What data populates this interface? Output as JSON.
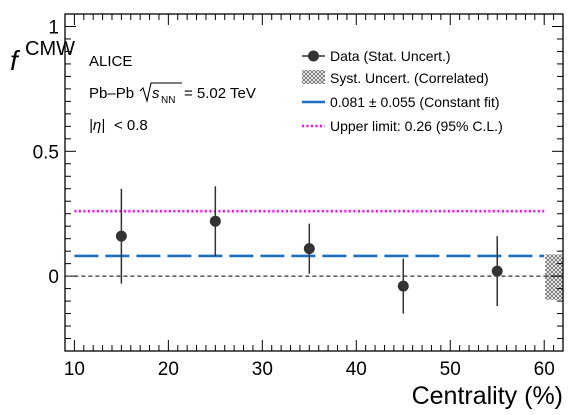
{
  "chart_data": {
    "type": "scatter",
    "ylabel_main": "f",
    "ylabel_sub": "CMW",
    "xlabel": "Centrality (%)",
    "xlim": [
      9,
      62
    ],
    "ylim": [
      -0.3,
      1.05
    ],
    "x_ticks": [
      10,
      20,
      30,
      40,
      50,
      60
    ],
    "y_ticks": [
      {
        "value": 0,
        "label": "0"
      },
      {
        "value": 0.5,
        "label": "0.5"
      },
      {
        "value": 1,
        "label": "1"
      }
    ],
    "annotations": {
      "experiment": "ALICE",
      "system_prefix": "Pb–Pb",
      "sqrt_var": "s",
      "sqrt_sub": "NN",
      "energy": "= 5.02 TeV",
      "eta_symbol": "|η|",
      "eta_cut": "< 0.8"
    },
    "legend": {
      "placement": "top-right",
      "data_label": "Data (Stat. Uncert.)",
      "syst_label": "Syst. Uncert. (Correlated)",
      "fit_label": "0.081 ± 0.055 (Constant fit)",
      "limit_label": "Upper limit: 0.26 (95% C.L.)"
    },
    "series": [
      {
        "x": [
          15,
          25,
          35,
          45,
          55
        ],
        "y": [
          0.16,
          0.22,
          0.11,
          -0.04,
          0.02
        ],
        "err_low": [
          0.19,
          0.14,
          0.1,
          0.11,
          0.14
        ],
        "err_high": [
          0.19,
          0.14,
          0.1,
          0.11,
          0.14
        ]
      }
    ],
    "systematic_band": {
      "x_range": [
        60,
        62
      ],
      "y_range": [
        -0.095,
        0.087
      ]
    },
    "constant_fit": {
      "value": 0.081,
      "error": 0.055
    },
    "upper_limit": {
      "value": 0.26
    },
    "zero_line": 0,
    "colors": {
      "points": "#333333",
      "fit": "#1f6fc0",
      "limit": "#ff00ff",
      "syst": "#999999"
    }
  }
}
